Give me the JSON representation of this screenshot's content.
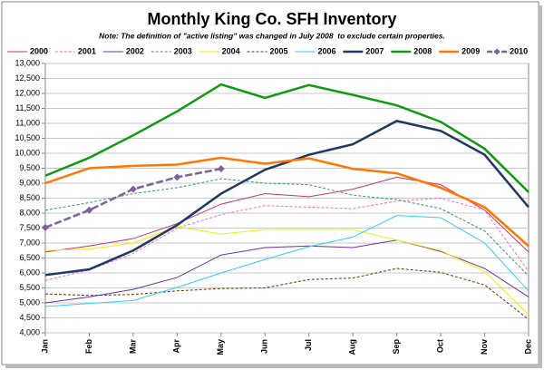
{
  "chart_data": {
    "type": "line",
    "title": "Monthly King Co. SFH Inventory",
    "subtitle": "Note: The definition of \"active listing\" was changed in July 2008  to exclude certain properties.",
    "categories": [
      "Jan",
      "Feb",
      "Mar",
      "Apr",
      "May",
      "Jun",
      "Jul",
      "Aug",
      "Sep",
      "Oct",
      "Nov",
      "Dec"
    ],
    "ylim": [
      4000,
      13000
    ],
    "yticks": [
      {
        "value": 4000,
        "label": "4,000"
      },
      {
        "value": 4500,
        "label": "4,500"
      },
      {
        "value": 5000,
        "label": "5,000"
      },
      {
        "value": 5500,
        "label": "5,500"
      },
      {
        "value": 6000,
        "label": "6,000"
      },
      {
        "value": 6500,
        "label": "6,500"
      },
      {
        "value": 7000,
        "label": "7,000"
      },
      {
        "value": 7500,
        "label": "7,500"
      },
      {
        "value": 8000,
        "label": "8,000"
      },
      {
        "value": 8500,
        "label": "8,500"
      },
      {
        "value": 9000,
        "label": "9,000"
      },
      {
        "value": 9500,
        "label": "9,500"
      },
      {
        "value": 10000,
        "label": "10,000"
      },
      {
        "value": 10500,
        "label": "10,500"
      },
      {
        "value": 11000,
        "label": "11,000"
      },
      {
        "value": 11500,
        "label": "11,500"
      },
      {
        "value": 12000,
        "label": "12,000"
      },
      {
        "value": 12500,
        "label": "12,500"
      },
      {
        "value": 13000,
        "label": "13,000"
      }
    ],
    "grid": true,
    "legend": "top",
    "series": [
      {
        "name": "2000",
        "color": "#cc3366",
        "width": 1,
        "dash": false,
        "values": [
          6700,
          6900,
          7150,
          7650,
          8300,
          8650,
          8550,
          8800,
          9200,
          8950,
          8100,
          6700
        ]
      },
      {
        "name": "2001",
        "color": "#ff66cc",
        "width": 1,
        "dash": true,
        "values": [
          5750,
          6100,
          6650,
          7500,
          7950,
          8250,
          8200,
          8150,
          8400,
          8500,
          8100,
          6050
        ]
      },
      {
        "name": "2002",
        "color": "#7030a0",
        "width": 1,
        "dash": false,
        "values": [
          5000,
          5200,
          5450,
          5850,
          6600,
          6850,
          6900,
          6850,
          7100,
          6720,
          6150,
          5200
        ]
      },
      {
        "name": "2003",
        "color": "#339966",
        "width": 1,
        "dash": true,
        "values": [
          8100,
          8350,
          8650,
          8850,
          9150,
          9000,
          8950,
          8600,
          8450,
          8150,
          7400,
          5900
        ]
      },
      {
        "name": "2004",
        "color": "#f0f000",
        "width": 1,
        "dash": false,
        "values": [
          6750,
          6800,
          7000,
          7550,
          7300,
          7450,
          7450,
          7450,
          7100,
          6750,
          6050,
          4600
        ]
      },
      {
        "name": "2005",
        "color": "#663300",
        "width": 1,
        "dash": true,
        "values": [
          5300,
          5250,
          5280,
          5400,
          5480,
          5500,
          5780,
          5830,
          6150,
          6020,
          5600,
          4450
        ]
      },
      {
        "name": "2006",
        "color": "#33ccff",
        "width": 1,
        "dash": false,
        "values": [
          4880,
          4980,
          5080,
          5520,
          6000,
          6450,
          6880,
          7200,
          7920,
          7850,
          7000,
          5400
        ]
      },
      {
        "name": "2007",
        "color": "#1f3864",
        "width": 2.5,
        "dash": false,
        "values": [
          5930,
          6120,
          6750,
          7600,
          8650,
          9450,
          9950,
          10300,
          11080,
          10750,
          9950,
          8200
        ]
      },
      {
        "name": "2008",
        "color": "#119911",
        "width": 2.5,
        "dash": false,
        "values": [
          9250,
          9850,
          10600,
          11400,
          12300,
          11850,
          12280,
          11950,
          11600,
          11050,
          10150,
          8700
        ]
      },
      {
        "name": "2009",
        "color": "#ff7700",
        "width": 2.5,
        "dash": false,
        "values": [
          9000,
          9500,
          9580,
          9620,
          9850,
          9650,
          9830,
          9480,
          9330,
          8850,
          8200,
          6900
        ]
      },
      {
        "name": "2010",
        "color": "#8060a0",
        "width": 2.5,
        "dash": true,
        "marker": "diamond",
        "values": [
          7520,
          8100,
          8800,
          9200,
          9480,
          null,
          null,
          null,
          null,
          null,
          null,
          null
        ]
      }
    ]
  }
}
